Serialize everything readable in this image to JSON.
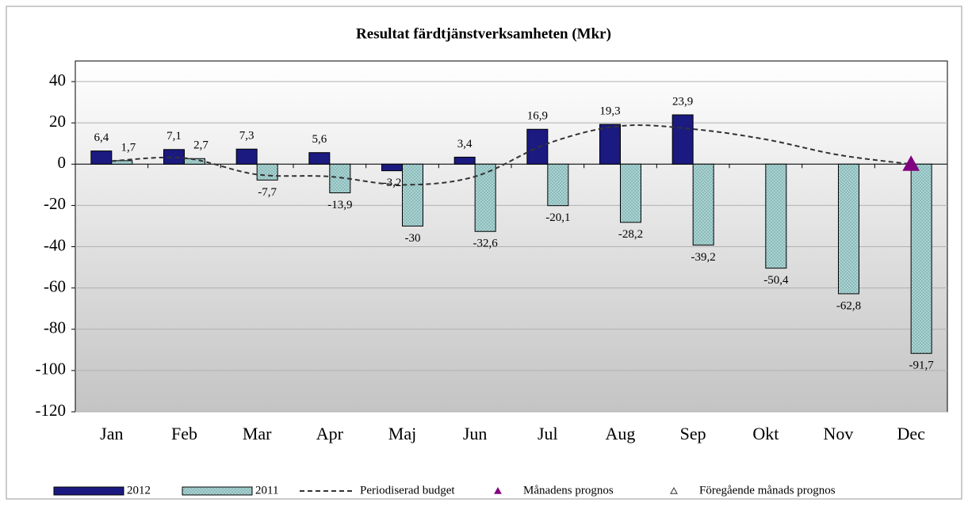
{
  "chart_data": {
    "type": "bar",
    "title": "Resultat färdtjänstverksamheten (Mkr)",
    "categories": [
      "Jan",
      "Feb",
      "Mar",
      "Apr",
      "Maj",
      "Jun",
      "Jul",
      "Aug",
      "Sep",
      "Okt",
      "Nov",
      "Dec"
    ],
    "ylim": [
      -120,
      50
    ],
    "yticks": [
      -120,
      -100,
      -80,
      -60,
      -40,
      -20,
      0,
      20,
      40
    ],
    "grid": true,
    "series": [
      {
        "name": "2012",
        "type": "bar",
        "color": "#1a1a80",
        "values": [
          6.4,
          7.1,
          7.3,
          5.6,
          -3.2,
          3.4,
          16.9,
          19.3,
          23.9,
          null,
          null,
          null
        ],
        "value_labels": [
          "6,4",
          "7,1",
          "7,3",
          "5,6",
          "-3,2",
          "3,4",
          "16,9",
          "19,3",
          "23,9",
          null,
          null,
          null
        ]
      },
      {
        "name": "2011",
        "type": "bar",
        "color": "#a9d3d3",
        "values": [
          1.7,
          2.7,
          -7.7,
          -13.9,
          -30,
          -32.6,
          -20.1,
          -28.2,
          -39.2,
          -50.4,
          -62.8,
          -91.7
        ],
        "value_labels": [
          "1,7",
          "2,7",
          "-7,7",
          "-13,9",
          "-30",
          "-32,6",
          "-20,1",
          "-28,2",
          "-39,2",
          "-50,4",
          "-62,8",
          "-91,7"
        ]
      },
      {
        "name": "Periodiserad budget",
        "type": "line",
        "color": "#333333",
        "values": [
          1.5,
          3,
          -5,
          -6,
          -10,
          -6,
          10,
          18.5,
          17,
          12,
          4.5,
          0
        ]
      },
      {
        "name": "Månadens prognos",
        "type": "marker",
        "color": "#800080",
        "values": [
          null,
          null,
          null,
          null,
          null,
          null,
          null,
          null,
          null,
          null,
          null,
          0
        ]
      },
      {
        "name": "Föregående månads prognos",
        "type": "marker-open",
        "color": "#333333",
        "values": [
          null,
          null,
          null,
          null,
          null,
          null,
          null,
          null,
          null,
          null,
          null,
          null
        ]
      }
    ]
  }
}
